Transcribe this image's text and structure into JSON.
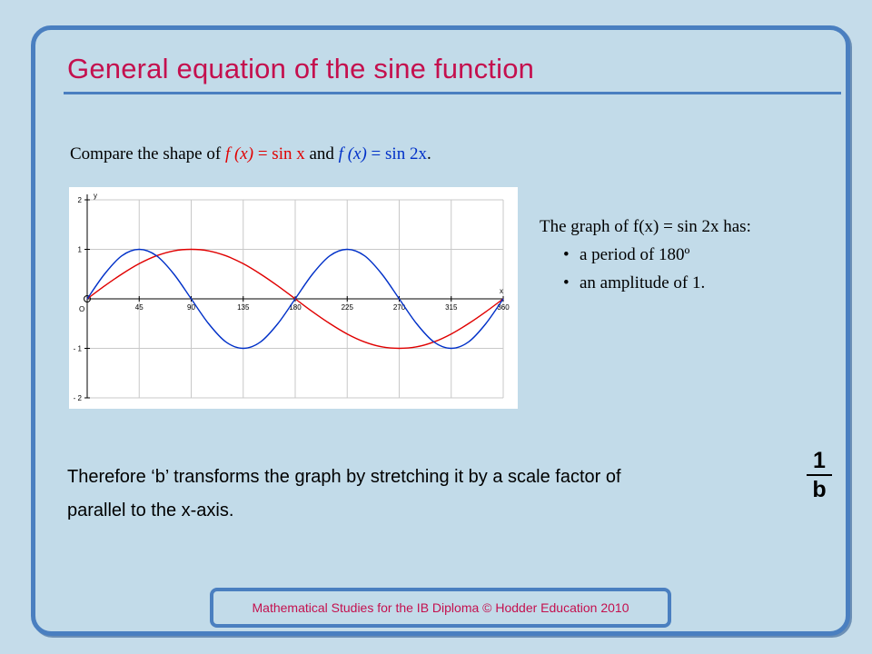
{
  "slide": {
    "title": "General equation of the sine function",
    "compare": {
      "prefix": "Compare the shape of ",
      "fx1": "f (x)",
      "eq1": " = ",
      "rhs1": "sin x",
      "and": " and ",
      "fx2": "f (x)",
      "eq2": " = ",
      "rhs2": "sin 2x",
      "end": "."
    },
    "info": {
      "heading": "The graph of f(x) = sin 2x has:",
      "bullets": [
        "a period of 180º",
        "an amplitude of 1."
      ]
    },
    "conclusion": {
      "line1": "Therefore ‘b’ transforms the graph by stretching it by a scale factor of",
      "line2": "parallel to the x-axis."
    },
    "fraction": {
      "numerator": "1",
      "denominator": "b"
    },
    "footer": "Mathematical Studies for the IB Diploma © Hodder Education 2010"
  },
  "colors": {
    "title": "#c4104e",
    "accent_blue": "#4a7fc0",
    "series_sin_x": "#e00000",
    "series_sin_2x": "#0030c8"
  },
  "chart_data": {
    "type": "line",
    "x_axis_label": "x",
    "y_axis_label": "y",
    "origin_label": "O",
    "xlim": [
      0,
      360
    ],
    "ylim": [
      -2,
      2
    ],
    "grid": true,
    "x_ticks": [
      45,
      90,
      135,
      180,
      225,
      270,
      315,
      360
    ],
    "x_tick_labels": [
      "45",
      "90",
      "135",
      "180",
      "225",
      "270",
      "315",
      "360"
    ],
    "y_ticks": [
      2,
      1,
      -1,
      -2
    ],
    "y_tick_labels": [
      "2",
      "1",
      "- 1",
      "- 2"
    ],
    "series": [
      {
        "key": "sin_x",
        "color": "#e00000",
        "x": [
          0,
          15,
          30,
          45,
          60,
          75,
          90,
          105,
          120,
          135,
          150,
          165,
          180,
          195,
          210,
          225,
          240,
          255,
          270,
          285,
          300,
          315,
          330,
          345,
          360
        ],
        "y": [
          0,
          0.26,
          0.5,
          0.71,
          0.87,
          0.97,
          1,
          0.97,
          0.87,
          0.71,
          0.5,
          0.26,
          0,
          -0.26,
          -0.5,
          -0.71,
          -0.87,
          -0.97,
          -1,
          -0.97,
          -0.87,
          -0.71,
          -0.5,
          -0.26,
          0
        ]
      },
      {
        "key": "sin_2x",
        "color": "#0030c8",
        "x": [
          0,
          15,
          30,
          45,
          60,
          75,
          90,
          105,
          120,
          135,
          150,
          165,
          180,
          195,
          210,
          225,
          240,
          255,
          270,
          285,
          300,
          315,
          330,
          345,
          360
        ],
        "y": [
          0,
          0.5,
          0.87,
          1,
          0.87,
          0.5,
          0,
          -0.5,
          -0.87,
          -1,
          -0.87,
          -0.5,
          0,
          0.5,
          0.87,
          1,
          0.87,
          0.5,
          0,
          -0.5,
          -0.87,
          -1,
          -0.87,
          -0.5,
          0
        ]
      }
    ]
  }
}
